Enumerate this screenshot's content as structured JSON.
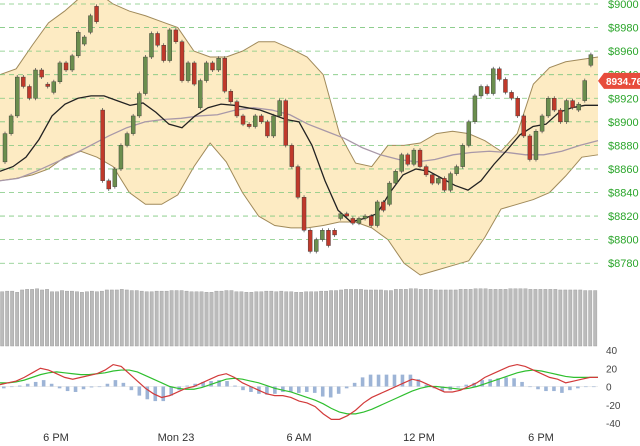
{
  "chart_data": [
    {
      "type": "candlestick",
      "title": "",
      "ylim": [
        8770,
        9000
      ],
      "yticks": [
        "$9000",
        "$8980",
        "$8960",
        "$8940",
        "$8920",
        "$8900",
        "$8880",
        "$8860",
        "$8840",
        "$8820",
        "$8800",
        "$8780"
      ],
      "ytick_values": [
        9000,
        8980,
        8960,
        8940,
        8920,
        8900,
        8880,
        8860,
        8840,
        8820,
        8800,
        8780
      ],
      "last_price": "8934.76",
      "colors": {
        "up": "#6b8e4e",
        "down": "#c0392b",
        "band_fill": "#fdebc3",
        "band_edge": "#a08a5a",
        "mid": "#222222",
        "slow": "#a898a8",
        "grid": "#7fc87f",
        "tag": "#e74c3c"
      },
      "candles": [
        [
          8866,
          8890
        ],
        [
          8890,
          8905
        ],
        [
          8905,
          8938
        ],
        [
          8938,
          8930
        ],
        [
          8930,
          8920
        ],
        [
          8920,
          8944
        ],
        [
          8944,
          8938
        ],
        [
          8932,
          8930
        ],
        [
          8925,
          8934
        ],
        [
          8934,
          8950
        ],
        [
          8950,
          8944
        ],
        [
          8944,
          8956
        ],
        [
          8956,
          8976
        ],
        [
          8966,
          8972
        ],
        [
          8976,
          8990
        ],
        [
          8998,
          8985
        ],
        [
          8910,
          8850
        ],
        [
          8850,
          8843
        ],
        [
          8845,
          8860
        ],
        [
          8860,
          8880
        ],
        [
          8880,
          8890
        ],
        [
          8890,
          8905
        ],
        [
          8905,
          8924
        ],
        [
          8924,
          8955
        ],
        [
          8955,
          8975
        ],
        [
          8975,
          8965
        ],
        [
          8965,
          8952
        ],
        [
          8952,
          8978
        ],
        [
          8978,
          8968
        ],
        [
          8968,
          8935
        ],
        [
          8935,
          8950
        ],
        [
          8950,
          8932
        ],
        [
          8912,
          8935
        ],
        [
          8935,
          8950
        ],
        [
          8950,
          8944
        ],
        [
          8944,
          8954
        ],
        [
          8954,
          8926
        ],
        [
          8926,
          8917
        ],
        [
          8917,
          8905
        ],
        [
          8905,
          8898
        ],
        [
          8898,
          8896
        ],
        [
          8896,
          8905
        ],
        [
          8905,
          8900
        ],
        [
          8900,
          8888
        ],
        [
          8888,
          8905
        ],
        [
          8905,
          8918
        ],
        [
          8918,
          8880
        ],
        [
          8880,
          8862
        ],
        [
          8862,
          8836
        ],
        [
          8836,
          8808
        ],
        [
          8808,
          8790
        ],
        [
          8790,
          8800
        ],
        [
          8800,
          8808
        ],
        [
          8808,
          8795
        ],
        [
          8808,
          8804
        ],
        [
          8818,
          8822
        ],
        [
          8822,
          8820
        ],
        [
          8818,
          8814
        ],
        [
          8814,
          8818
        ],
        [
          8818,
          8820
        ],
        [
          8820,
          8812
        ],
        [
          8812,
          8832
        ],
        [
          8832,
          8825
        ],
        [
          8830,
          8848
        ],
        [
          8848,
          8858
        ],
        [
          8858,
          8872
        ],
        [
          8872,
          8864
        ],
        [
          8864,
          8876
        ],
        [
          8876,
          8862
        ],
        [
          8862,
          8855
        ],
        [
          8855,
          8848
        ],
        [
          8848,
          8852
        ],
        [
          8852,
          8842
        ],
        [
          8842,
          8856
        ],
        [
          8856,
          8862
        ],
        [
          8862,
          8880
        ],
        [
          8880,
          8900
        ],
        [
          8900,
          8922
        ],
        [
          8922,
          8930
        ],
        [
          8930,
          8924
        ],
        [
          8924,
          8945
        ],
        [
          8945,
          8936
        ],
        [
          8936,
          8925
        ],
        [
          8925,
          8920
        ],
        [
          8920,
          8905
        ],
        [
          8905,
          8888
        ],
        [
          8888,
          8868
        ],
        [
          8868,
          8892
        ],
        [
          8892,
          8905
        ],
        [
          8905,
          8920
        ],
        [
          8920,
          8910
        ],
        [
          8910,
          8900
        ],
        [
          8900,
          8918
        ],
        [
          8918,
          8912
        ],
        [
          8910,
          8915
        ],
        [
          8918,
          8935
        ],
        [
          8948,
          8957
        ]
      ],
      "mid": [
        8858,
        8862,
        8870,
        8885,
        8905,
        8915,
        8920,
        8922,
        8922,
        8918,
        8914,
        8916,
        8908,
        8898,
        8895,
        8905,
        8912,
        8915,
        8914,
        8912,
        8910,
        8906,
        8902,
        8900,
        8880,
        8850,
        8825,
        8815,
        8818,
        8822,
        8840,
        8855,
        8860,
        8858,
        8852,
        8846,
        8842,
        8850,
        8864,
        8876,
        8889,
        8896,
        8898,
        8908,
        8912,
        8914,
        8914
      ],
      "upper": [
        8940,
        8945,
        8965,
        8984,
        8994,
        9006,
        9010,
        9000,
        8994,
        8990,
        8985,
        8980,
        8960,
        8955,
        8955,
        8960,
        8968,
        8968,
        8962,
        8955,
        8940,
        8890,
        8865,
        8862,
        8880,
        8880,
        8882,
        8890,
        8892,
        8890,
        8884,
        8875,
        8890,
        8932,
        8946,
        8951,
        8953,
        8955
      ],
      "lower": [
        8850,
        8852,
        8855,
        8860,
        8870,
        8875,
        8870,
        8862,
        8840,
        8830,
        8830,
        8838,
        8862,
        8882,
        8866,
        8840,
        8820,
        8812,
        8810,
        8810,
        8812,
        8815,
        8815,
        8810,
        8800,
        8780,
        8770,
        8774,
        8778,
        8782,
        8802,
        8826,
        8830,
        8834,
        8840,
        8854,
        8870,
        8872
      ],
      "slow": [
        8850,
        8852,
        8858,
        8865,
        8872,
        8880,
        8888,
        8895,
        8900,
        8902,
        8903,
        8905,
        8906,
        8910,
        8912,
        8910,
        8906,
        8898,
        8892,
        8886,
        8878,
        8872,
        8868,
        8866,
        8868,
        8872,
        8874,
        8875,
        8874,
        8872,
        8872,
        8875,
        8880,
        8884
      ]
    },
    {
      "type": "bar",
      "title": "",
      "values": "uniform volume bars",
      "count": 120,
      "heights_rel": [
        0.92,
        0.93,
        0.93,
        0.91,
        0.95,
        0.96,
        0.96,
        0.97,
        0.95,
        0.96,
        0.92,
        0.92,
        0.94,
        0.93,
        0.93,
        0.92,
        0.91,
        0.92,
        0.93,
        0.92,
        0.93,
        0.95,
        0.95,
        0.95,
        0.96,
        0.95,
        0.94,
        0.94,
        0.93,
        0.92,
        0.92,
        0.93,
        0.93,
        0.93,
        0.94,
        0.94,
        0.94,
        0.93,
        0.92,
        0.92,
        0.92,
        0.91,
        0.91,
        0.93,
        0.93,
        0.94,
        0.94,
        0.92,
        0.92,
        0.91,
        0.91,
        0.92,
        0.92,
        0.93,
        0.93,
        0.92,
        0.93,
        0.92,
        0.92,
        0.91,
        0.91,
        0.92,
        0.92,
        0.92,
        0.93,
        0.93,
        0.94,
        0.94,
        0.95,
        0.96,
        0.96,
        0.96,
        0.96,
        0.95,
        0.95,
        0.95,
        0.95,
        0.94,
        0.94,
        0.96,
        0.96,
        0.96,
        0.97,
        0.97,
        0.96,
        0.96,
        0.96,
        0.95,
        0.95,
        0.95,
        0.95,
        0.95,
        0.96,
        0.96,
        0.96,
        0.97,
        0.97,
        0.97,
        0.96,
        0.96,
        0.96,
        0.96,
        0.97,
        0.97,
        0.97,
        0.97,
        0.96,
        0.96,
        0.96,
        0.96,
        0.96,
        0.96,
        0.95,
        0.95,
        0.95,
        0.95,
        0.95,
        0.94,
        0.94,
        0.94
      ]
    },
    {
      "type": "line",
      "title": "",
      "ylim": [
        -40,
        40
      ],
      "yticks": [
        "40",
        "20",
        "0",
        "-20",
        "-40"
      ],
      "ytick_values": [
        40,
        20,
        0,
        -20,
        -40
      ],
      "fast": [
        2,
        4,
        6,
        10,
        15,
        20,
        18,
        14,
        10,
        8,
        10,
        12,
        14,
        18,
        24,
        22,
        14,
        6,
        -2,
        -8,
        -12,
        -10,
        -6,
        -2,
        0,
        4,
        8,
        12,
        14,
        10,
        4,
        0,
        -4,
        -8,
        -10,
        -10,
        -12,
        -16,
        -18,
        -22,
        -30,
        -36,
        -36,
        -32,
        -26,
        -18,
        -12,
        -8,
        -4,
        0,
        4,
        8,
        6,
        2,
        -2,
        -6,
        -6,
        -4,
        0,
        4,
        10,
        14,
        18,
        22,
        24,
        22,
        18,
        14,
        10,
        8,
        4,
        6,
        8,
        10,
        10
      ],
      "slow": [
        4,
        4,
        5,
        7,
        10,
        13,
        15,
        16,
        15,
        14,
        13,
        13,
        14,
        15,
        17,
        18,
        18,
        16,
        12,
        8,
        4,
        0,
        -2,
        -3,
        -3,
        -1,
        2,
        5,
        8,
        9,
        8,
        6,
        4,
        1,
        -2,
        -4,
        -6,
        -9,
        -12,
        -15,
        -19,
        -24,
        -28,
        -30,
        -30,
        -28,
        -25,
        -21,
        -17,
        -13,
        -9,
        -5,
        -2,
        0,
        0,
        -1,
        -2,
        -3,
        -2,
        0,
        3,
        6,
        9,
        12,
        15,
        17,
        18,
        17,
        15,
        13,
        11,
        10,
        10,
        10,
        10
      ],
      "hist": [
        -2,
        0,
        1,
        3,
        5,
        7,
        3,
        -2,
        -5,
        -6,
        -3,
        -1,
        0,
        3,
        7,
        4,
        -4,
        -10,
        -14,
        -16,
        -16,
        -10,
        -4,
        1,
        3,
        5,
        6,
        7,
        6,
        1,
        -4,
        -6,
        -8,
        -9,
        -8,
        -6,
        -6,
        -7,
        -6,
        -7,
        -11,
        -12,
        -8,
        -2,
        4,
        10,
        13,
        13,
        13,
        13,
        13,
        13,
        8,
        2,
        -2,
        -5,
        -4,
        -1,
        2,
        4,
        7,
        8,
        9,
        10,
        9,
        5,
        0,
        -3,
        -5,
        -5,
        -7,
        -4,
        -2,
        0,
        0
      ]
    }
  ],
  "xaxis": {
    "labels": [
      "6 PM",
      "Mon 23",
      "6 AM",
      "12 PM",
      "6 PM"
    ]
  }
}
